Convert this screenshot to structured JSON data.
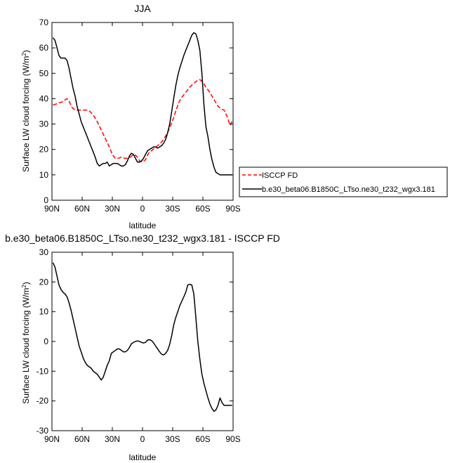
{
  "chart_data": [
    {
      "type": "line",
      "title": "JJA",
      "xlabel": "latitude",
      "ylabel": "Surface LW cloud forcing",
      "ylabel_unit": "(W/m",
      "ylabel_unit_sup": "2",
      "ylabel_unit_close": ")",
      "ylim": [
        0,
        70
      ],
      "yticks": [
        0,
        10,
        20,
        30,
        40,
        50,
        60,
        70
      ],
      "xlim": [
        90,
        -90
      ],
      "xticks": [
        90,
        60,
        30,
        0,
        -30,
        -60,
        -90
      ],
      "xtick_labels": [
        "90N",
        "60N",
        "30N",
        "0",
        "30S",
        "60S",
        "90S"
      ],
      "grid": false,
      "legend": "right",
      "series": [
        {
          "name": "ISCCP FD",
          "color": "#ff0000",
          "dash": "dashed",
          "x": [
            89,
            85,
            82,
            79,
            77,
            75,
            73,
            70,
            67,
            64,
            60,
            57,
            54,
            51,
            48,
            45,
            42,
            39,
            36,
            33,
            30,
            27,
            24,
            21,
            18,
            15,
            12,
            9,
            6,
            3,
            0,
            -3,
            -6,
            -9,
            -12,
            -15,
            -18,
            -21,
            -24,
            -27,
            -30,
            -33,
            -36,
            -39,
            -42,
            -45,
            -48,
            -51,
            -54,
            -57,
            -60,
            -63,
            -66,
            -69,
            -72,
            -75,
            -78,
            -81,
            -84,
            -87,
            -89
          ],
          "values": [
            37.5,
            38.0,
            38.5,
            38.8,
            39.5,
            40.0,
            39.0,
            36.5,
            35.5,
            35.5,
            35.5,
            35.5,
            35.5,
            34.5,
            33.0,
            31.0,
            28.5,
            26.0,
            23.5,
            21.0,
            18.0,
            16.5,
            16.5,
            17.0,
            16.5,
            16.5,
            17.0,
            18.0,
            17.5,
            15.5,
            15.0,
            16.0,
            18.5,
            19.5,
            20.5,
            21.5,
            22.5,
            24.0,
            26.0,
            28.5,
            31.5,
            35.0,
            38.5,
            40.5,
            42.0,
            43.5,
            45.0,
            46.0,
            47.0,
            47.5,
            46.5,
            44.5,
            43.0,
            41.0,
            39.0,
            37.0,
            36.0,
            35.5,
            33.0,
            29.5,
            31.0
          ]
        },
        {
          "name": "b.e30_beta06.B1850C_LTso.ne30_t232_wgx3.181",
          "color": "#000000",
          "dash": "solid",
          "x": [
            89,
            87,
            85,
            83,
            81,
            79,
            77,
            75,
            73,
            71,
            69,
            67,
            65,
            63,
            61,
            59,
            57,
            55,
            53,
            51,
            49,
            47,
            45,
            43,
            41,
            39,
            37,
            35,
            33,
            31,
            29,
            27,
            25,
            23,
            21,
            19,
            17,
            15,
            13,
            11,
            9,
            7,
            5,
            3,
            1,
            -1,
            -3,
            -5,
            -7,
            -9,
            -11,
            -13,
            -15,
            -17,
            -19,
            -21,
            -23,
            -25,
            -27,
            -29,
            -31,
            -33,
            -35,
            -37,
            -39,
            -41,
            -43,
            -45,
            -47,
            -49,
            -51,
            -53,
            -55,
            -57,
            -59,
            -61,
            -63,
            -65,
            -67,
            -69,
            -71,
            -73,
            -75,
            -77,
            -79,
            -81,
            -83,
            -85,
            -87,
            -89
          ],
          "values": [
            64.0,
            63.0,
            60.0,
            57.0,
            56.0,
            56.0,
            56.0,
            55.0,
            52.0,
            48.0,
            44.0,
            41.0,
            37.0,
            34.0,
            31.0,
            29.0,
            27.0,
            25.0,
            23.0,
            21.0,
            19.0,
            17.0,
            14.5,
            13.5,
            14.0,
            14.5,
            14.5,
            15.0,
            13.5,
            14.0,
            14.5,
            14.5,
            14.5,
            14.0,
            13.5,
            13.5,
            14.0,
            15.5,
            17.5,
            18.5,
            18.0,
            16.5,
            15.0,
            15.0,
            15.5,
            16.5,
            18.0,
            19.5,
            20.0,
            20.5,
            21.0,
            21.0,
            20.5,
            21.0,
            21.5,
            22.5,
            24.0,
            26.5,
            30.0,
            35.0,
            40.0,
            45.0,
            49.0,
            52.0,
            54.5,
            57.0,
            59.0,
            61.0,
            63.0,
            65.0,
            66.0,
            65.5,
            63.0,
            59.0,
            50.0,
            38.0,
            29.0,
            25.0,
            20.0,
            16.0,
            13.0,
            11.0,
            10.5,
            10.0,
            10.0,
            10.0,
            10.0,
            10.0,
            10.0,
            10.0
          ]
        }
      ]
    },
    {
      "type": "line",
      "title": "b.e30_beta06.B1850C_LTso.ne30_t232_wgx3.181 - ISCCP FD",
      "xlabel": "latitude",
      "ylabel": "Surface LW cloud forcing",
      "ylabel_unit": "(W/m",
      "ylabel_unit_sup": "2",
      "ylabel_unit_close": ")",
      "ylim": [
        -30,
        30
      ],
      "yticks": [
        -30,
        -20,
        -10,
        0,
        10,
        20,
        30
      ],
      "xlim": [
        90,
        -90
      ],
      "xticks": [
        90,
        60,
        30,
        0,
        -30,
        -60,
        -90
      ],
      "xtick_labels": [
        "90N",
        "60N",
        "30N",
        "0",
        "30S",
        "60S",
        "90S"
      ],
      "grid": false,
      "series": [
        {
          "color": "#000000",
          "dash": "solid",
          "x": [
            89,
            87,
            85,
            83,
            81,
            79,
            77,
            75,
            73,
            71,
            69,
            67,
            65,
            63,
            61,
            59,
            57,
            55,
            53,
            51,
            49,
            47,
            45,
            43,
            41,
            39,
            37,
            35,
            33,
            31,
            29,
            27,
            25,
            23,
            21,
            19,
            17,
            15,
            13,
            11,
            9,
            7,
            5,
            3,
            1,
            -1,
            -3,
            -5,
            -7,
            -9,
            -11,
            -13,
            -15,
            -17,
            -19,
            -21,
            -23,
            -25,
            -27,
            -29,
            -31,
            -33,
            -35,
            -37,
            -39,
            -41,
            -43,
            -45,
            -47,
            -49,
            -51,
            -53,
            -55,
            -57,
            -59,
            -61,
            -63,
            -65,
            -67,
            -69,
            -71,
            -73,
            -75,
            -77,
            -79,
            -81,
            -83,
            -85,
            -87,
            -89
          ],
          "values": [
            26.5,
            25.0,
            22.0,
            19.0,
            17.5,
            16.5,
            16.0,
            15.0,
            13.0,
            10.5,
            7.5,
            4.5,
            1.5,
            -1.5,
            -3.5,
            -5.5,
            -7.0,
            -8.0,
            -8.5,
            -9.0,
            -10.0,
            -10.5,
            -11.0,
            -12.0,
            -13.0,
            -12.0,
            -10.0,
            -8.0,
            -6.5,
            -4.0,
            -3.5,
            -3.0,
            -2.5,
            -2.5,
            -3.0,
            -3.5,
            -3.5,
            -3.0,
            -2.0,
            -0.8,
            -0.3,
            0.0,
            0.2,
            0.0,
            -0.3,
            -0.5,
            -0.3,
            0.5,
            0.6,
            0.3,
            -0.5,
            -1.5,
            -2.5,
            -3.5,
            -4.3,
            -4.5,
            -4.0,
            -3.0,
            -1.0,
            2.0,
            5.5,
            8.0,
            10.0,
            12.0,
            13.5,
            15.0,
            16.5,
            19.0,
            19.2,
            19.0,
            16.0,
            8.0,
            0.0,
            -6.0,
            -11.0,
            -14.0,
            -16.5,
            -19.0,
            -21.0,
            -22.5,
            -23.5,
            -23.0,
            -21.5,
            -19.0,
            -20.5,
            -21.5,
            -21.5,
            -21.5,
            -21.5,
            -21.5
          ]
        }
      ]
    }
  ]
}
